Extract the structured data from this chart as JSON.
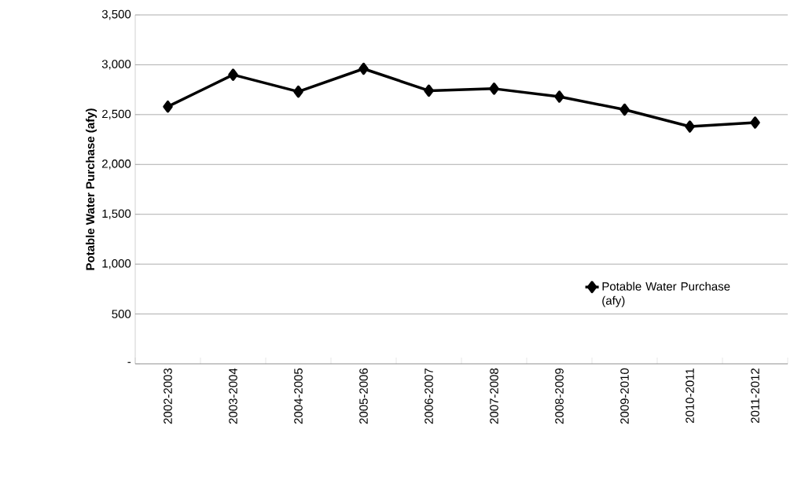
{
  "chart_data": {
    "type": "line",
    "ylabel": "Potable Water Purchase (afy)",
    "categories": [
      "2002-2003",
      "2003-2004",
      "2004-2005",
      "2005-2006",
      "2006-2007",
      "2007-2008",
      "2008-2009",
      "2009-2010",
      "2010-2011",
      "2011-2012"
    ],
    "series": [
      {
        "name": "Potable Water Purchase (afy)",
        "color": "#000000",
        "values": [
          2580,
          2900,
          2730,
          2960,
          2740,
          2760,
          2680,
          2550,
          2380,
          2420
        ]
      }
    ],
    "ylim": [
      0,
      3500
    ],
    "yticks": [
      {
        "value": 0,
        "label": "-"
      },
      {
        "value": 500,
        "label": "500"
      },
      {
        "value": 1000,
        "label": "1,000"
      },
      {
        "value": 1500,
        "label": "1,500"
      },
      {
        "value": 2000,
        "label": "2,000"
      },
      {
        "value": 2500,
        "label": "2,500"
      },
      {
        "value": 3000,
        "label": "3,000"
      },
      {
        "value": 3500,
        "label": "3,500"
      }
    ],
    "grid": "y",
    "legend": "right",
    "marker": "diamond",
    "line_style": "solid"
  }
}
